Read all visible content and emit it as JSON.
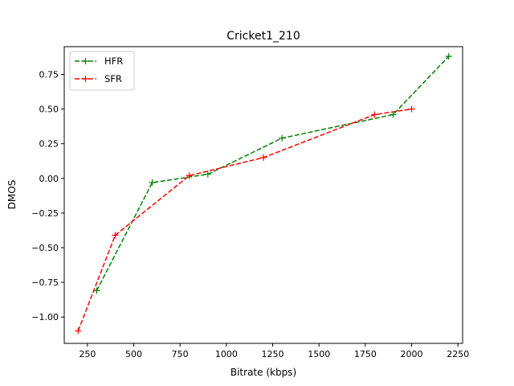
{
  "chart_data": {
    "type": "line",
    "title": "Cricket1_210",
    "xlabel": "Bitrate (kbps)",
    "ylabel": "DMOS",
    "xlim": [
      125,
      2275
    ],
    "ylim": [
      -1.19,
      0.95
    ],
    "xticks": [
      250,
      500,
      750,
      1000,
      1250,
      1500,
      1750,
      2000,
      2250
    ],
    "xtick_labels": [
      "250",
      "500",
      "750",
      "1000",
      "1250",
      "1500",
      "1750",
      "2000",
      "2250"
    ],
    "yticks": [
      -1.0,
      -0.75,
      -0.5,
      -0.25,
      0.0,
      0.25,
      0.5,
      0.75
    ],
    "ytick_labels": [
      "−1.00",
      "−0.75",
      "−0.50",
      "−0.25",
      "0.00",
      "0.25",
      "0.50",
      "0.75"
    ],
    "grid": false,
    "legend_position": "top-left",
    "series": [
      {
        "name": "HFR",
        "color": "#008000",
        "line_style": "dashed",
        "marker": "plus",
        "x": [
          300,
          600,
          900,
          1300,
          1900,
          2200
        ],
        "y": [
          -0.81,
          -0.03,
          0.03,
          0.29,
          0.46,
          0.88
        ]
      },
      {
        "name": "SFR",
        "color": "#ff0000",
        "line_style": "dashed",
        "marker": "plus",
        "x": [
          200,
          400,
          800,
          1200,
          1800,
          2000
        ],
        "y": [
          -1.1,
          -0.41,
          0.02,
          0.15,
          0.46,
          0.5
        ]
      }
    ]
  }
}
